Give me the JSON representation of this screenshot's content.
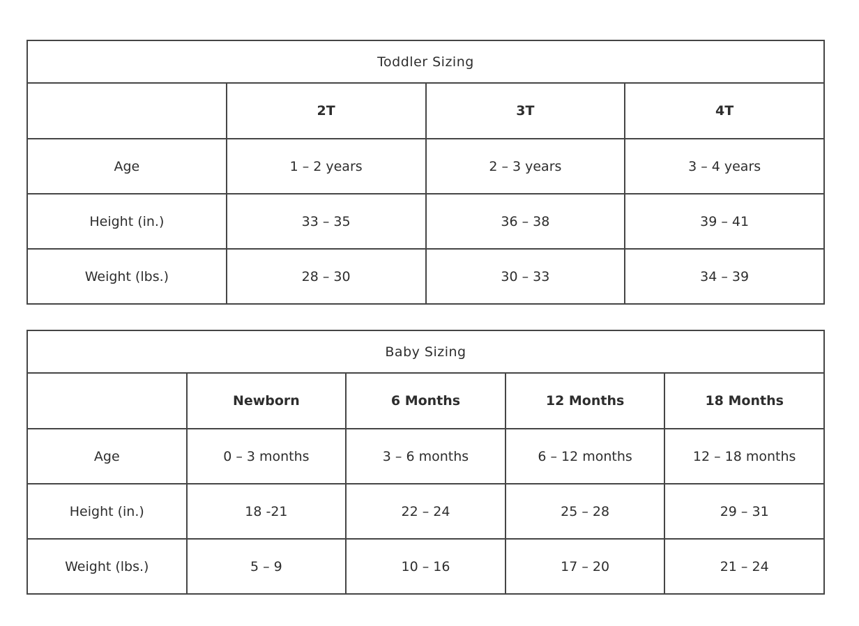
{
  "page": {
    "background_color": "#ffffff",
    "border_color": "#454545",
    "text_color": "#2d2d2d"
  },
  "toddler_table": {
    "title": "Toddler Sizing",
    "columns": [
      "2T",
      "3T",
      "4T"
    ],
    "row_labels_header": "",
    "rows": [
      {
        "label": "Age",
        "values": [
          "1 – 2 years",
          "2 – 3 years",
          "3 – 4 years"
        ]
      },
      {
        "label": "Height (in.)",
        "values": [
          "33 – 35",
          "36 – 38",
          "39 – 41"
        ]
      },
      {
        "label": "Weight (lbs.)",
        "values": [
          "28 – 30",
          "30 – 33",
          "34 – 39"
        ]
      }
    ]
  },
  "baby_table": {
    "title": "Baby Sizing",
    "columns": [
      "Newborn",
      "6 Months",
      "12 Months",
      "18 Months"
    ],
    "row_labels_header": "",
    "rows": [
      {
        "label": "Age",
        "values": [
          "0 – 3 months",
          "3 – 6 months",
          "6 – 12 months",
          "12 – 18 months"
        ]
      },
      {
        "label": "Height (in.)",
        "values": [
          "18 -21",
          "22 – 24",
          "25 – 28",
          "29 – 31"
        ]
      },
      {
        "label": "Weight (lbs.)",
        "values": [
          "5 – 9",
          "10 – 16",
          "17 – 20",
          "21 – 24"
        ]
      }
    ]
  }
}
